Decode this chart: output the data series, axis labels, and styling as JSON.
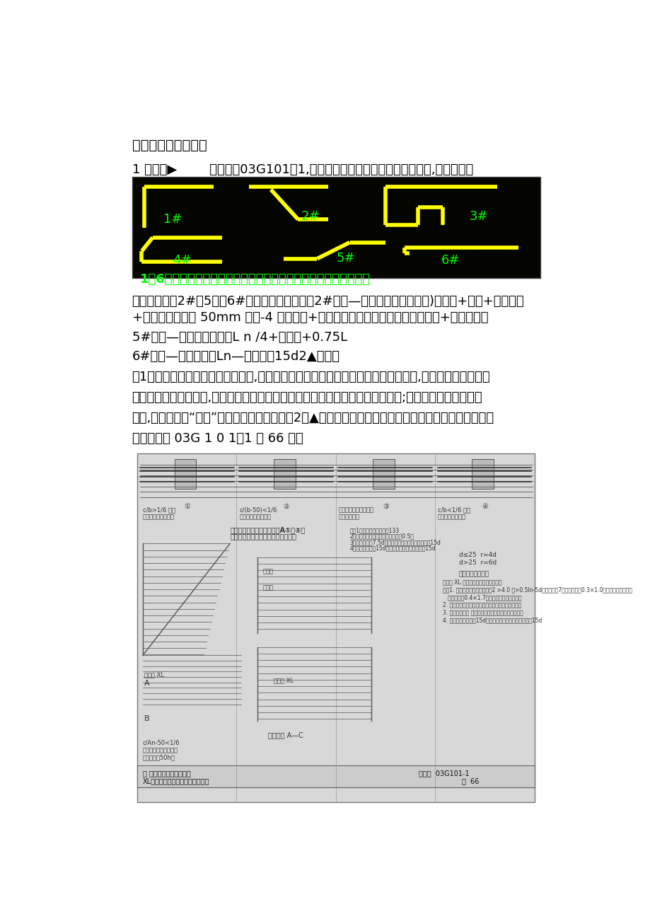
{
  "title_line1": "四、悬臂跨钢筋计算",
  "title_line2": "1 、主筋▶        软件配合03G101－1,在软件中重要有六种形式的悬臂钢筋,如下图所示",
  "black_box_label": "1至6号钢筋可用于悬臂跨的通长钢筋，或用于单悬臂或伸入邻跨。",
  "para1": "这里，我们以2#、5＃及6#钢筋为例进行分析：2#钢筋—悬臂上通筋＝（通跨)净跨长+梁高+次梁宽度",
  "para2": "+钢筋距次梁内侧 50mm 起弯-4 个保护层+钢筋的斜段长＋下层钢筋锚固入梁内+支座锚固值",
  "para3": "5#钢筋—上部下排钢筋＝L n /4+支座宽+0.75L",
  "para4": "6#钢筋—下部钢筋＝Ln—保护层＋15d2▲、箍筋",
  "para5": "（1）、如果悬臂跨的截面为变截面,这时我们要同步输入其端部截面尺寸与根部梁高,这重要会影响悬臂梁",
  "para6": "截面的箍筋的长度计算,上部钢筋存在斜长的时候，斜段的高度及下部钢筋的长度;如果没有发生变截面的",
  "para7": "状况,我们只需在“截面”输入其端部尺寸即可。2（▲）、悬臂梁的箍筋根数计算时应不减去次梁的宽度；",
  "para8": "根据修定版 03G 1 0 1－1 的 66 页。",
  "yellow_color": "#FFFF00",
  "green_color": "#00FF00",
  "page_bg": "#FFFFFF",
  "body_fontsize": 13,
  "title_fontsize": 14
}
